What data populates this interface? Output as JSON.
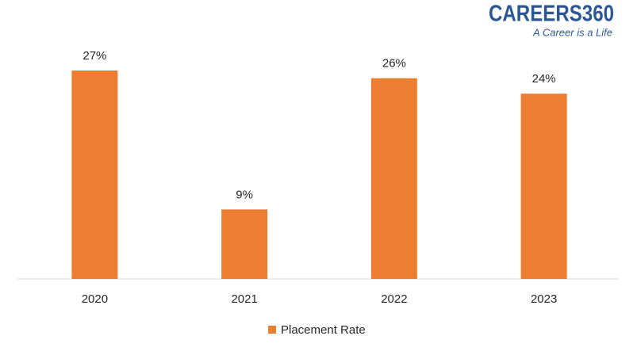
{
  "chart_data": {
    "type": "bar",
    "logo": {
      "name": "CAREERS360",
      "tagline": "A Career is a Life"
    },
    "categories": [
      "2020",
      "2021",
      "2022",
      "2023"
    ],
    "series": [
      {
        "name": "Placement Rate",
        "color": "#ed7d31",
        "values": [
          27,
          9,
          26,
          24
        ],
        "value_labels": [
          "27%",
          "9%",
          "26%",
          "24%"
        ]
      }
    ],
    "legend": "bottom"
  }
}
